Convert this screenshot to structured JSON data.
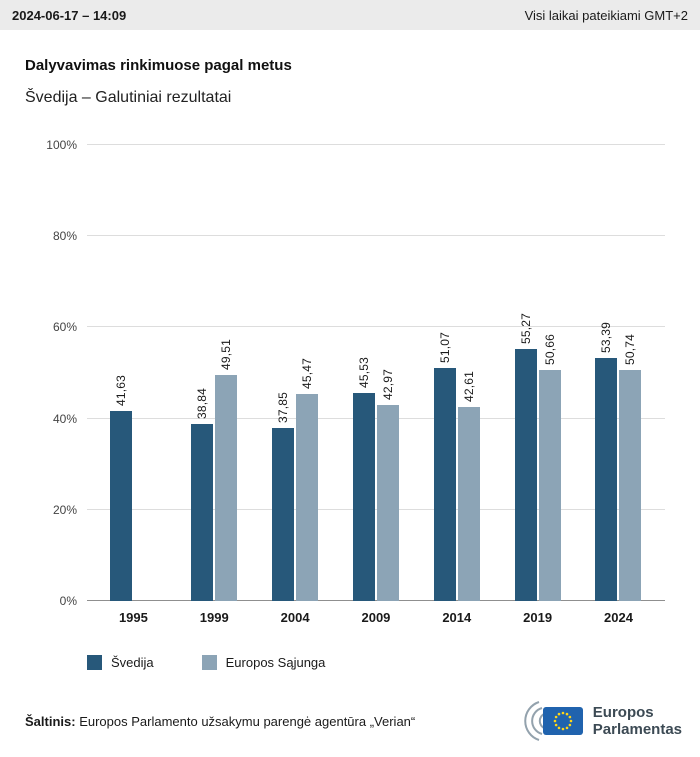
{
  "header": {
    "datetime": "2024-06-17 – 14:09",
    "timezone_note": "Visi laikai pateikiami GMT+2"
  },
  "page": {
    "title": "Dalyvavimas rinkimuose pagal metus",
    "subtitle": "Švedija – Galutiniai rezultatai"
  },
  "chart_data": {
    "type": "bar",
    "title": "Dalyvavimas rinkimuose pagal metus",
    "subtitle": "Švedija – Galutiniai rezultatai",
    "categories": [
      "1995",
      "1999",
      "2004",
      "2009",
      "2014",
      "2019",
      "2024"
    ],
    "series": [
      {
        "name": "Švedija",
        "color": "#27587a",
        "values": [
          41.63,
          38.84,
          37.85,
          45.53,
          51.07,
          55.27,
          53.39
        ],
        "labels": [
          "41,63",
          "38,84",
          "37,85",
          "45,53",
          "51,07",
          "55,27",
          "53,39"
        ]
      },
      {
        "name": "Europos Sąjunga",
        "color": "#8ca4b6",
        "values": [
          null,
          49.51,
          45.47,
          42.97,
          42.61,
          50.66,
          50.74
        ],
        "labels": [
          null,
          "49,51",
          "45,47",
          "42,97",
          "42,61",
          "50,66",
          "50,74"
        ]
      }
    ],
    "ylim": [
      0,
      100
    ],
    "yticks": [
      "0%",
      "20%",
      "40%",
      "60%",
      "80%",
      "100%"
    ],
    "grid": true,
    "legend_position": "bottom"
  },
  "footer": {
    "source_label": "Šaltinis:",
    "source_text": "Europos Parlamento užsakymu parengė agentūra „Verian“",
    "logo": {
      "line1": "Europos",
      "line2": "Parlamentas"
    }
  },
  "colors": {
    "sweden": "#27587a",
    "eu": "#8ca4b6",
    "eu_flag_blue": "#2063ae",
    "eu_star_yellow": "#ffd617"
  }
}
